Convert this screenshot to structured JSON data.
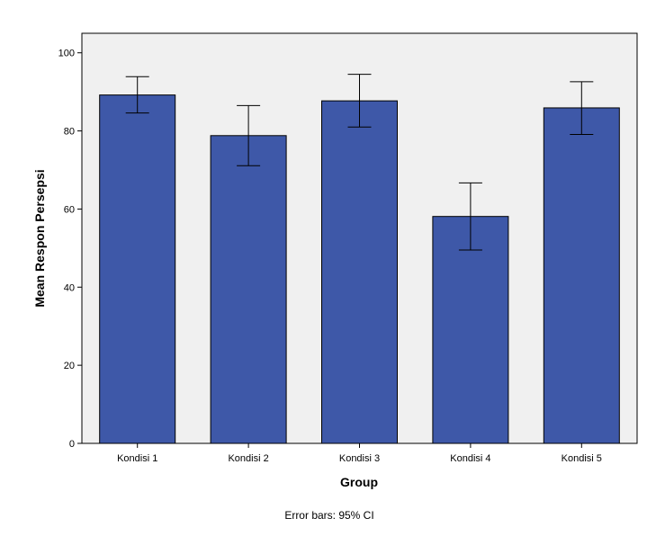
{
  "chart_data": {
    "type": "bar",
    "categories": [
      "Kondisi 1",
      "Kondisi 2",
      "Kondisi 3",
      "Kondisi 4",
      "Kondisi 5"
    ],
    "values": [
      89.2,
      78.8,
      87.7,
      58.1,
      85.9
    ],
    "error_low": [
      84.6,
      71.1,
      81.0,
      49.5,
      79.1
    ],
    "error_high": [
      93.9,
      86.5,
      94.5,
      66.7,
      92.6
    ],
    "xlabel": "Group",
    "ylabel": "Mean Respon Persepsi",
    "ylim": [
      0,
      105
    ],
    "yticks": [
      0,
      20,
      40,
      60,
      80,
      100
    ],
    "ytick_labels": [
      "0",
      "20",
      "40",
      "60",
      "80",
      "100"
    ],
    "footnote": "Error bars: 95% CI",
    "grid": false,
    "colors": {
      "bar_fill": "#3e58a8",
      "plot_background": "#f0f0f0"
    }
  }
}
